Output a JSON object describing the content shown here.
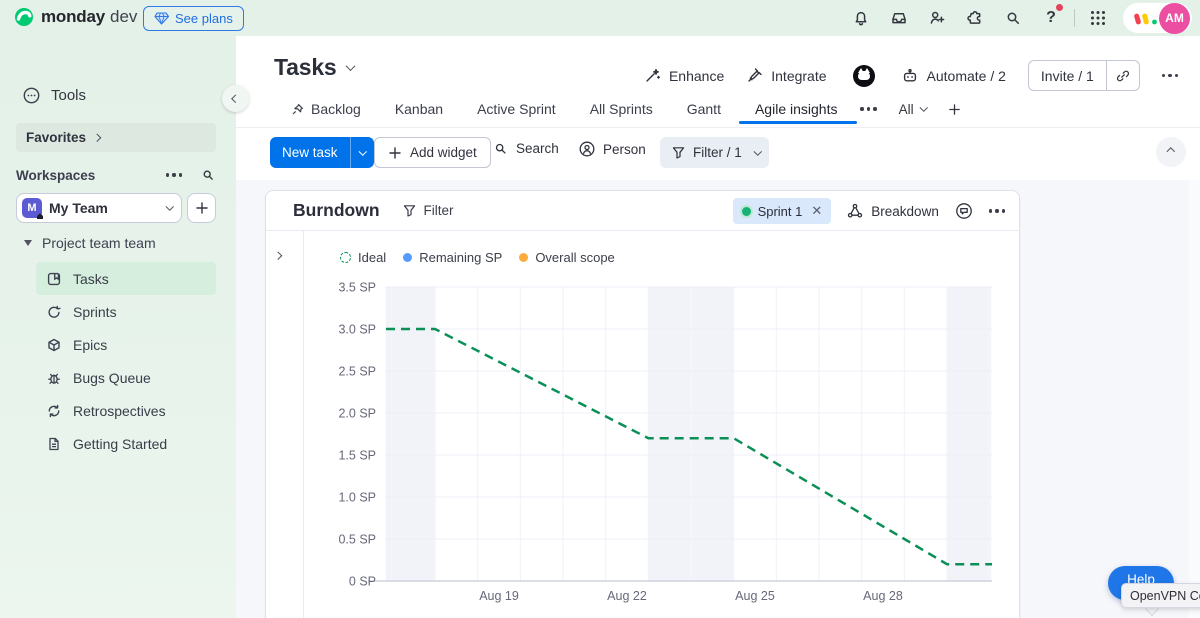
{
  "topbar": {
    "brand": "monday",
    "brand_suffix": "dev",
    "see_plans_label": "See plans",
    "avatar_initials": "AM",
    "icon_names": [
      "gem",
      "notifications-bell",
      "inbox",
      "invite-members",
      "apps-marketplace",
      "search",
      "help",
      "apps-grid",
      "monday-logo-mark"
    ]
  },
  "sidebar": {
    "tools_label": "Tools",
    "favorites_label": "Favorites",
    "workspaces_label": "Workspaces",
    "workspace": {
      "name": "My Team",
      "initial": "M"
    },
    "group_label": "Project team team",
    "items": [
      {
        "label": "Tasks",
        "icon": "board-icon",
        "active": true
      },
      {
        "label": "Sprints",
        "icon": "sprint-loop-icon",
        "active": false
      },
      {
        "label": "Epics",
        "icon": "cube-icon",
        "active": false
      },
      {
        "label": "Bugs Queue",
        "icon": "bug-icon",
        "active": false
      },
      {
        "label": "Retrospectives",
        "icon": "retro-cycle-icon",
        "active": false
      },
      {
        "label": "Getting Started",
        "icon": "document-icon",
        "active": false
      }
    ]
  },
  "header": {
    "title": "Tasks",
    "enhance_label": "Enhance",
    "integrate_label": "Integrate",
    "automate_label": "Automate / 2",
    "invite_label": "Invite / 1"
  },
  "tabs": {
    "items": [
      {
        "label": "Backlog"
      },
      {
        "label": "Kanban"
      },
      {
        "label": "Active Sprint"
      },
      {
        "label": "All Sprints"
      },
      {
        "label": "Gantt"
      },
      {
        "label": "Agile insights"
      }
    ],
    "active_label": "Agile insights",
    "view_filter_label": "All"
  },
  "toolbar": {
    "new_task_label": "New task",
    "add_widget_label": "Add widget",
    "search_label": "Search",
    "person_label": "Person",
    "filter_label": "Filter / 1"
  },
  "widget": {
    "title": "Burndown",
    "filter_label": "Filter",
    "sprint_chip_label": "Sprint 1",
    "breakdown_label": "Breakdown"
  },
  "legend": [
    {
      "label": "Ideal",
      "color": "#0b8f57",
      "marker": "dashed-circle"
    },
    {
      "label": "Remaining SP",
      "color": "#579bfc",
      "marker": "dot"
    },
    {
      "label": "Overall scope",
      "color": "#fdab3d",
      "marker": "dot"
    }
  ],
  "overlay": {
    "help_label": "Help",
    "tooltip_text": "OpenVPN Co"
  },
  "colors": {
    "accent_blue": "#0073ea",
    "topbar_green": "#e4f1e8",
    "ideal_green": "#0b8f57",
    "remaining_blue": "#579bfc",
    "scope_orange": "#fdab3d",
    "avatar_pink": "#ec4fa2",
    "workspace_purple": "#5d5bd4",
    "alert_red": "#e2445c",
    "selected_item_green": "#d5eedd",
    "sprint_chip_blue": "#d9e8fb"
  },
  "chart_data": {
    "type": "line",
    "title": "Burndown",
    "ylabel": "SP",
    "ylim": [
      0,
      3.5
    ],
    "y_tick_step_sp": 0.5,
    "y_ticks": [
      "0 SP",
      "0.5 SP",
      "1.0 SP",
      "1.5 SP",
      "2.0 SP",
      "2.5 SP",
      "3.0 SP",
      "3.5 SP"
    ],
    "month": "Aug",
    "x_ticks": [
      "Aug 19",
      "Aug 22",
      "Aug 25",
      "Aug 28"
    ],
    "x_tick_days": [
      19,
      22,
      25,
      28
    ],
    "x_range_days": [
      16.3,
      30.6
    ],
    "weekend_days": [
      16,
      17,
      23,
      24,
      30,
      31
    ],
    "grid": true,
    "legend_position": "top-left",
    "series": [
      {
        "name": "Ideal",
        "color": "#0b8f57",
        "style": "dashed",
        "points_day_sp": [
          [
            16,
            3.0
          ],
          [
            17.5,
            3.0
          ],
          [
            22.5,
            1.7
          ],
          [
            24.5,
            1.7
          ],
          [
            29.5,
            0.2
          ],
          [
            31,
            0.2
          ]
        ]
      },
      {
        "name": "Remaining SP",
        "color": "#579bfc",
        "style": "solid",
        "points_day_sp": []
      },
      {
        "name": "Overall scope",
        "color": "#fdab3d",
        "style": "solid",
        "points_day_sp": []
      }
    ]
  }
}
